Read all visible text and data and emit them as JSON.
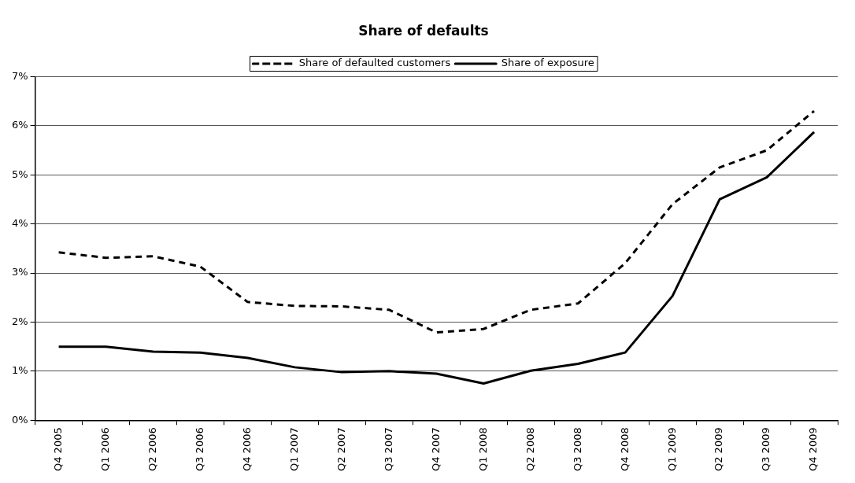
{
  "chart_data": {
    "type": "line",
    "title": "Share of defaults",
    "categories": [
      "Q4 2005",
      "Q1 2006",
      "Q2 2006",
      "Q3 2006",
      "Q4 2006",
      "Q1 2007",
      "Q2 2007",
      "Q3 2007",
      "Q4 2007",
      "Q1 2008",
      "Q2 2008",
      "Q3 2008",
      "Q4 2008",
      "Q1 2009",
      "Q2 2009",
      "Q3 2009",
      "Q4 2009"
    ],
    "series": [
      {
        "name": "Share of defaulted customers",
        "color": "#000000",
        "line_style": "dashed",
        "values": [
          3.42,
          3.31,
          3.34,
          3.13,
          2.41,
          2.33,
          2.32,
          2.25,
          1.79,
          1.86,
          2.25,
          2.38,
          3.2,
          4.4,
          5.15,
          5.5,
          6.3
        ]
      },
      {
        "name": "Share of exposure",
        "color": "#000000",
        "line_style": "solid",
        "values": [
          1.5,
          1.5,
          1.4,
          1.38,
          1.27,
          1.08,
          0.98,
          1.0,
          0.95,
          0.75,
          1.01,
          1.15,
          1.38,
          2.53,
          4.5,
          4.95,
          5.87
        ]
      }
    ],
    "ylim": [
      0,
      7
    ],
    "yticks": [
      {
        "value": 0,
        "label": "0%"
      },
      {
        "value": 1,
        "label": "1%"
      },
      {
        "value": 2,
        "label": "2%"
      },
      {
        "value": 3,
        "label": "3%"
      },
      {
        "value": 4,
        "label": "4%"
      },
      {
        "value": 5,
        "label": "5%"
      },
      {
        "value": 6,
        "label": "6%"
      },
      {
        "value": 7,
        "label": "7%"
      }
    ],
    "grid": "y",
    "legend": "top",
    "marker": "none"
  }
}
